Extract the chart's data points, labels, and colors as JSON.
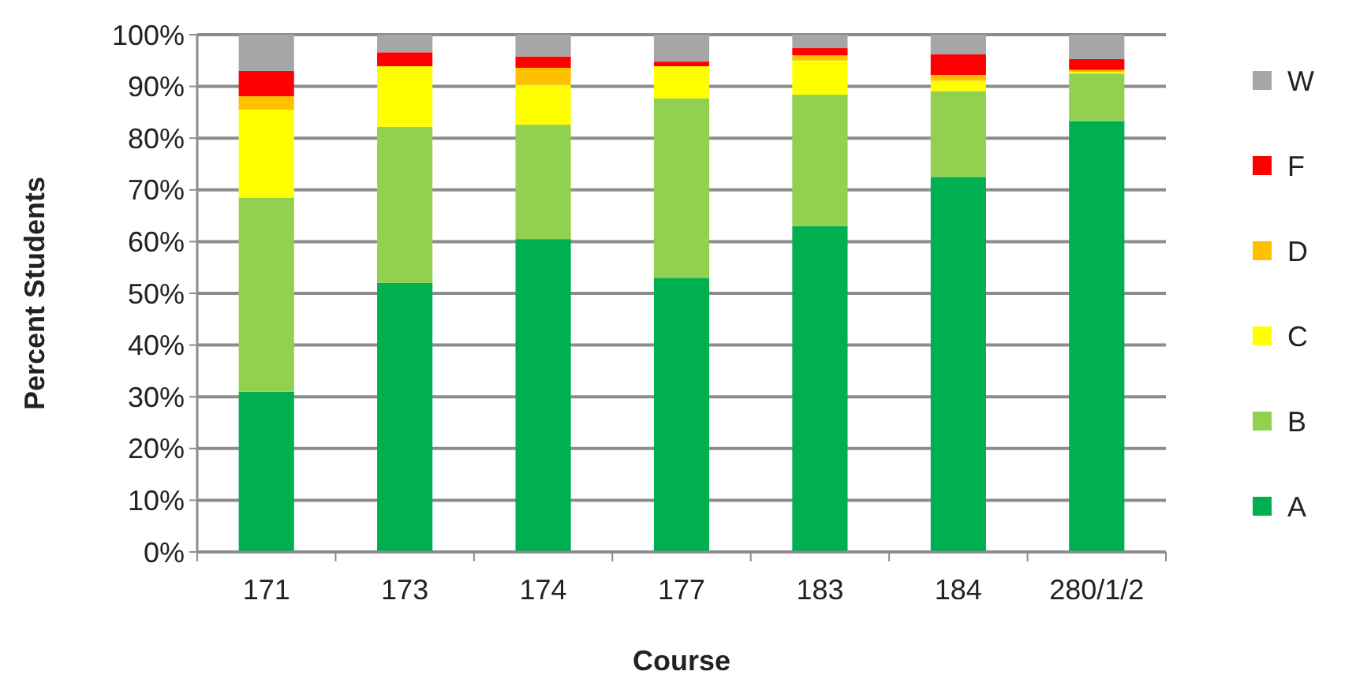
{
  "chart_data": {
    "type": "bar",
    "stacked": true,
    "xlabel": "Course",
    "ylabel": "Percent Students",
    "categories": [
      "171",
      "173",
      "174",
      "177",
      "183",
      "184",
      "280/1/2"
    ],
    "series": [
      {
        "name": "A",
        "color": "#00b050",
        "values": [
          31,
          52,
          60.5,
          53,
          63,
          72.5,
          83.3
        ]
      },
      {
        "name": "B",
        "color": "#92d050",
        "values": [
          37.5,
          30.2,
          22.1,
          34.7,
          25.4,
          16.6,
          9.2
        ]
      },
      {
        "name": "C",
        "color": "#ffff00",
        "values": [
          17,
          11.7,
          7.7,
          6.2,
          6.6,
          2,
          0.3
        ]
      },
      {
        "name": "D",
        "color": "#ffc000",
        "values": [
          2.6,
          0,
          3.3,
          0,
          1,
          1.1,
          0.4
        ]
      },
      {
        "name": "F",
        "color": "#ff0000",
        "values": [
          4.9,
          2.7,
          2.2,
          0.9,
          1.4,
          4,
          2.1
        ]
      },
      {
        "name": "W",
        "color": "#a6a6a6",
        "values": [
          7,
          3.4,
          4.2,
          5.2,
          2.6,
          3.8,
          4.7
        ]
      }
    ],
    "ylim": [
      0,
      100
    ],
    "yticks": [
      {
        "value": 0,
        "label": "0%"
      },
      {
        "value": 10,
        "label": "10%"
      },
      {
        "value": 20,
        "label": "20%"
      },
      {
        "value": 30,
        "label": "30%"
      },
      {
        "value": 40,
        "label": "40%"
      },
      {
        "value": 50,
        "label": "50%"
      },
      {
        "value": 60,
        "label": "60%"
      },
      {
        "value": 70,
        "label": "70%"
      },
      {
        "value": 80,
        "label": "80%"
      },
      {
        "value": 90,
        "label": "90%"
      },
      {
        "value": 100,
        "label": "100%"
      }
    ],
    "grid": "y",
    "legend": "right"
  }
}
